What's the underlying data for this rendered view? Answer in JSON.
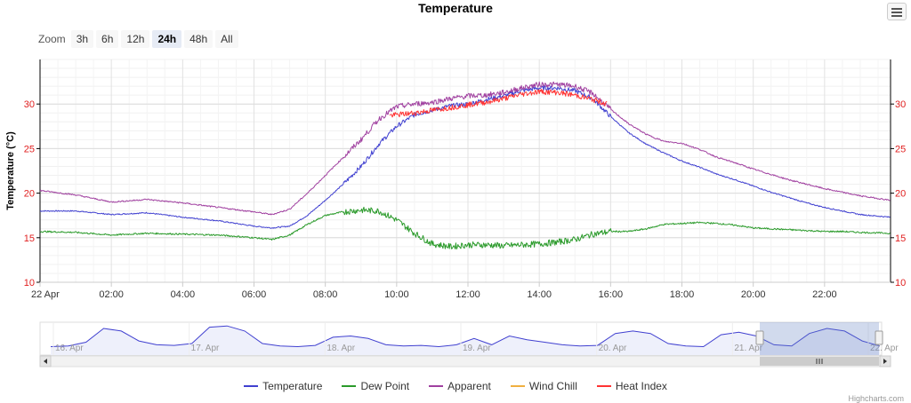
{
  "title": "Temperature",
  "zoom": {
    "label": "Zoom",
    "buttons": [
      "3h",
      "6h",
      "12h",
      "24h",
      "48h",
      "All"
    ],
    "active": "24h"
  },
  "credits": "Highcharts.com",
  "chart_data": {
    "type": "line",
    "title": "Temperature",
    "ylabel": "Temperature (°C)",
    "ylim": [
      10,
      35
    ],
    "yticks": [
      10,
      15,
      20,
      25,
      30
    ],
    "xlim": [
      0,
      23.85
    ],
    "xticks": [
      {
        "x": 0,
        "label": "22 Apr"
      },
      {
        "x": 2,
        "label": "02:00"
      },
      {
        "x": 4,
        "label": "04:00"
      },
      {
        "x": 6,
        "label": "06:00"
      },
      {
        "x": 8,
        "label": "08:00"
      },
      {
        "x": 10,
        "label": "10:00"
      },
      {
        "x": 12,
        "label": "12:00"
      },
      {
        "x": 14,
        "label": "14:00"
      },
      {
        "x": 16,
        "label": "16:00"
      },
      {
        "x": 18,
        "label": "18:00"
      },
      {
        "x": 20,
        "label": "20:00"
      },
      {
        "x": 22,
        "label": "22:00"
      }
    ],
    "grid": true,
    "legend_position": "bottom",
    "series": [
      {
        "name": "Temperature",
        "color": "#4040d0",
        "x": [
          0,
          1,
          2,
          3,
          4,
          5,
          6,
          6.5,
          7,
          7.5,
          8,
          8.5,
          9,
          9.5,
          10,
          10.5,
          11,
          11.5,
          12,
          12.5,
          13,
          13.5,
          14,
          14.5,
          15,
          15.5,
          16,
          16.5,
          17,
          17.5,
          18,
          18.5,
          19,
          19.5,
          20,
          20.5,
          21,
          21.5,
          22,
          22.5,
          23,
          23.85
        ],
        "y": [
          18.0,
          18.0,
          17.6,
          17.8,
          17.3,
          16.9,
          16.3,
          16.1,
          16.3,
          17.5,
          19.2,
          21.0,
          23.0,
          25.5,
          27.5,
          28.8,
          29.3,
          29.8,
          30.0,
          30.5,
          30.9,
          31.5,
          31.8,
          31.8,
          31.5,
          30.6,
          28.6,
          26.8,
          25.5,
          24.5,
          23.6,
          22.9,
          22.1,
          21.5,
          20.8,
          20.1,
          19.5,
          18.9,
          18.4,
          18.0,
          17.6,
          17.3
        ],
        "noise": 0.25
      },
      {
        "name": "Dew Point",
        "color": "#2a9a2a",
        "x": [
          0,
          1,
          2,
          3,
          4,
          5,
          6,
          6.5,
          7,
          7.5,
          8,
          8.5,
          9,
          9.5,
          10,
          10.5,
          11,
          11.5,
          12,
          12.5,
          13,
          13.5,
          14,
          14.5,
          15,
          15.5,
          16,
          16.5,
          17,
          17.5,
          18,
          18.5,
          19,
          19.5,
          20,
          20.5,
          21,
          21.5,
          22,
          22.5,
          23,
          23.85
        ],
        "y": [
          15.7,
          15.6,
          15.3,
          15.5,
          15.4,
          15.3,
          15.0,
          14.8,
          15.3,
          16.5,
          17.5,
          17.9,
          18.1,
          18.0,
          17.0,
          15.5,
          14.3,
          14.0,
          14.2,
          14.2,
          14.1,
          14.2,
          14.3,
          14.5,
          14.8,
          15.4,
          15.7,
          15.7,
          16.0,
          16.5,
          16.6,
          16.7,
          16.6,
          16.4,
          16.1,
          16.0,
          15.9,
          15.8,
          15.7,
          15.7,
          15.6,
          15.5
        ],
        "noise": 0.35
      },
      {
        "name": "Apparent",
        "color": "#a040a0",
        "x": [
          0,
          1,
          2,
          3,
          4,
          5,
          6,
          6.5,
          7,
          7.5,
          8,
          8.5,
          9,
          9.5,
          10,
          10.5,
          11,
          11.5,
          12,
          12.5,
          13,
          13.5,
          14,
          14.5,
          15,
          15.5,
          16,
          16.5,
          17,
          17.5,
          18,
          18.5,
          19,
          19.5,
          20,
          20.5,
          21,
          21.5,
          22,
          22.5,
          23,
          23.85
        ],
        "y": [
          20.3,
          19.8,
          19.0,
          19.3,
          18.9,
          18.4,
          17.9,
          17.6,
          18.2,
          20.0,
          22.0,
          24.0,
          26.0,
          28.3,
          29.7,
          30.0,
          30.2,
          30.6,
          30.9,
          31.0,
          31.3,
          31.8,
          32.2,
          32.2,
          32.0,
          31.2,
          29.4,
          27.8,
          26.6,
          25.8,
          25.6,
          24.9,
          24.0,
          23.4,
          22.7,
          22.1,
          21.5,
          21.0,
          20.5,
          20.1,
          19.7,
          19.2
        ],
        "noise": 0.3
      },
      {
        "name": "Wind Chill",
        "color": "#f0b040",
        "x": [],
        "y": [],
        "noise": 0
      },
      {
        "name": "Heat Index",
        "color": "#ff3333",
        "x": [
          9.8,
          10.5,
          11,
          11.5,
          12,
          12.5,
          13,
          13.5,
          14,
          14.5,
          15,
          15.5,
          15.9
        ],
        "y": [
          28.7,
          29.0,
          29.3,
          29.6,
          29.9,
          30.2,
          30.6,
          31.1,
          31.4,
          31.3,
          31.0,
          30.5,
          30.0
        ],
        "noise": 0.3
      }
    ],
    "navigator": {
      "labels": [
        "16. Apr",
        "17. Apr",
        "18. Apr",
        "19. Apr",
        "20. Apr",
        "21. Apr",
        "22. Apr"
      ],
      "values": [
        17.5,
        18,
        21,
        32,
        30,
        22,
        19,
        18.5,
        20,
        33,
        34,
        30,
        20,
        18,
        17.5,
        18.5,
        25,
        26,
        24,
        19,
        18,
        18.5,
        17.5,
        19,
        24,
        19,
        26,
        23,
        21,
        19,
        18,
        18.5,
        28,
        30,
        28,
        20,
        18,
        17.5,
        27,
        29,
        26,
        19,
        18,
        28,
        32,
        30,
        22,
        18
      ]
    }
  }
}
